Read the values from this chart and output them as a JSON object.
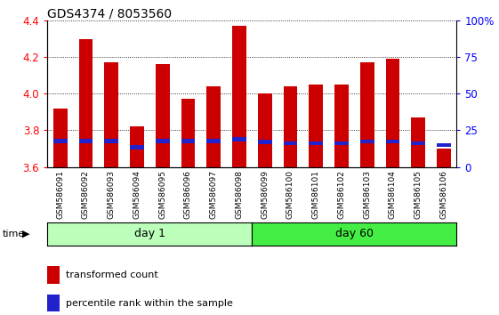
{
  "title": "GDS4374 / 8053560",
  "samples": [
    "GSM586091",
    "GSM586092",
    "GSM586093",
    "GSM586094",
    "GSM586095",
    "GSM586096",
    "GSM586097",
    "GSM586098",
    "GSM586099",
    "GSM586100",
    "GSM586101",
    "GSM586102",
    "GSM586103",
    "GSM586104",
    "GSM586105",
    "GSM586106"
  ],
  "bar_values": [
    3.92,
    4.3,
    4.17,
    3.82,
    4.16,
    3.97,
    4.04,
    4.37,
    4.0,
    4.04,
    4.05,
    4.05,
    4.17,
    4.19,
    3.87,
    3.7
  ],
  "percentile_bottom": [
    3.73,
    3.73,
    3.73,
    3.695,
    3.73,
    3.73,
    3.73,
    3.74,
    3.725,
    3.718,
    3.718,
    3.718,
    3.728,
    3.728,
    3.718,
    3.708
  ],
  "percentile_top": [
    3.752,
    3.755,
    3.752,
    3.718,
    3.752,
    3.752,
    3.752,
    3.762,
    3.748,
    3.74,
    3.74,
    3.74,
    3.75,
    3.75,
    3.74,
    3.73
  ],
  "bar_color": "#cc0000",
  "percentile_color": "#2222cc",
  "ymin": 3.6,
  "ymax": 4.4,
  "y_ticks": [
    3.6,
    3.8,
    4.0,
    4.2,
    4.4
  ],
  "right_y_ticks": [
    0,
    25,
    50,
    75,
    100
  ],
  "right_y_labels": [
    "0",
    "25",
    "50",
    "75",
    "100%"
  ],
  "day1_label": "day 1",
  "day60_label": "day 60",
  "day1_count": 8,
  "day60_count": 8,
  "time_label": "time",
  "legend_red": "transformed count",
  "legend_blue": "percentile rank within the sample",
  "day1_color": "#bbffbb",
  "day60_color": "#44ee44",
  "xlabel_bg": "#cccccc",
  "plot_bg": "#ffffff"
}
